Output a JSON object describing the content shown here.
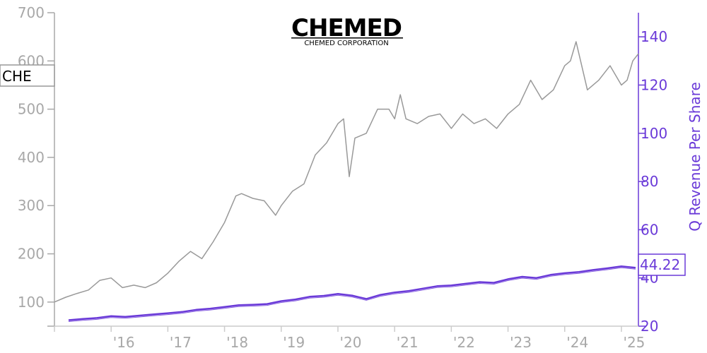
{
  "logo": {
    "name": "CHEMED",
    "subtitle": "CHEMED CORPORATION"
  },
  "ticker": "CHE",
  "last_value_label": "44.22",
  "colors": {
    "price": "#999999",
    "revenue": "#6a3ad8",
    "left_axis": "#a8a8a8",
    "bottom_axis": "#cccccc"
  },
  "chart_data": {
    "type": "line",
    "xlabel": "",
    "ylabel": "",
    "ylabel_right": "Q Revenue Per Share",
    "x_ticks": [
      "'16",
      "'17",
      "'18",
      "'19",
      "'20",
      "'21",
      "'22",
      "'23",
      "'24",
      "'25"
    ],
    "xlim": [
      2015.0,
      2025.3
    ],
    "y_left_ticks": [
      100,
      200,
      300,
      400,
      500,
      600,
      700
    ],
    "ylim_left": [
      50,
      700
    ],
    "y_right_ticks": [
      20,
      40,
      60,
      80,
      100,
      120,
      140
    ],
    "ylim_right": [
      20,
      150
    ],
    "grid": false,
    "series": [
      {
        "name": "",
        "axis": "left",
        "style": "price",
        "x": [
          2015.0,
          2015.2,
          2015.4,
          2015.6,
          2015.8,
          2016.0,
          2016.2,
          2016.4,
          2016.6,
          2016.8,
          2017.0,
          2017.2,
          2017.4,
          2017.6,
          2017.8,
          2018.0,
          2018.2,
          2018.3,
          2018.5,
          2018.7,
          2018.9,
          2019.0,
          2019.2,
          2019.4,
          2019.6,
          2019.8,
          2020.0,
          2020.1,
          2020.2,
          2020.3,
          2020.5,
          2020.7,
          2020.9,
          2021.0,
          2021.1,
          2021.2,
          2021.4,
          2021.6,
          2021.8,
          2022.0,
          2022.2,
          2022.4,
          2022.6,
          2022.8,
          2023.0,
          2023.2,
          2023.4,
          2023.6,
          2023.8,
          2024.0,
          2024.1,
          2024.2,
          2024.3,
          2024.4,
          2024.6,
          2024.8,
          2025.0,
          2025.1,
          2025.2,
          2025.3
        ],
        "y": [
          100,
          110,
          118,
          125,
          145,
          150,
          130,
          135,
          130,
          140,
          160,
          185,
          205,
          190,
          225,
          265,
          320,
          325,
          315,
          310,
          280,
          300,
          330,
          345,
          405,
          430,
          470,
          480,
          360,
          440,
          450,
          500,
          500,
          480,
          530,
          480,
          470,
          485,
          490,
          460,
          490,
          470,
          480,
          460,
          490,
          510,
          560,
          520,
          540,
          590,
          600,
          640,
          590,
          540,
          560,
          590,
          550,
          560,
          600,
          615
        ]
      },
      {
        "name": "",
        "axis": "right",
        "style": "revenue",
        "x": [
          2015.25,
          2015.5,
          2015.75,
          2016.0,
          2016.25,
          2016.5,
          2016.75,
          2017.0,
          2017.25,
          2017.5,
          2017.75,
          2018.0,
          2018.25,
          2018.5,
          2018.75,
          2019.0,
          2019.25,
          2019.5,
          2019.75,
          2020.0,
          2020.25,
          2020.5,
          2020.75,
          2021.0,
          2021.25,
          2021.5,
          2021.75,
          2022.0,
          2022.25,
          2022.5,
          2022.75,
          2023.0,
          2023.25,
          2023.5,
          2023.75,
          2024.0,
          2024.25,
          2024.5,
          2024.75,
          2025.0,
          2025.25
        ],
        "y": [
          22.5,
          23.0,
          23.4,
          24.2,
          23.9,
          24.4,
          24.9,
          25.4,
          25.9,
          26.8,
          27.3,
          28.0,
          28.7,
          28.9,
          29.2,
          30.4,
          31.1,
          32.2,
          32.6,
          33.4,
          32.7,
          31.3,
          33.0,
          34.0,
          34.6,
          35.6,
          36.6,
          36.9,
          37.6,
          38.3,
          38.0,
          39.5,
          40.5,
          40.0,
          41.3,
          42.0,
          42.5,
          43.3,
          44.0,
          44.8,
          44.22
        ]
      }
    ]
  }
}
